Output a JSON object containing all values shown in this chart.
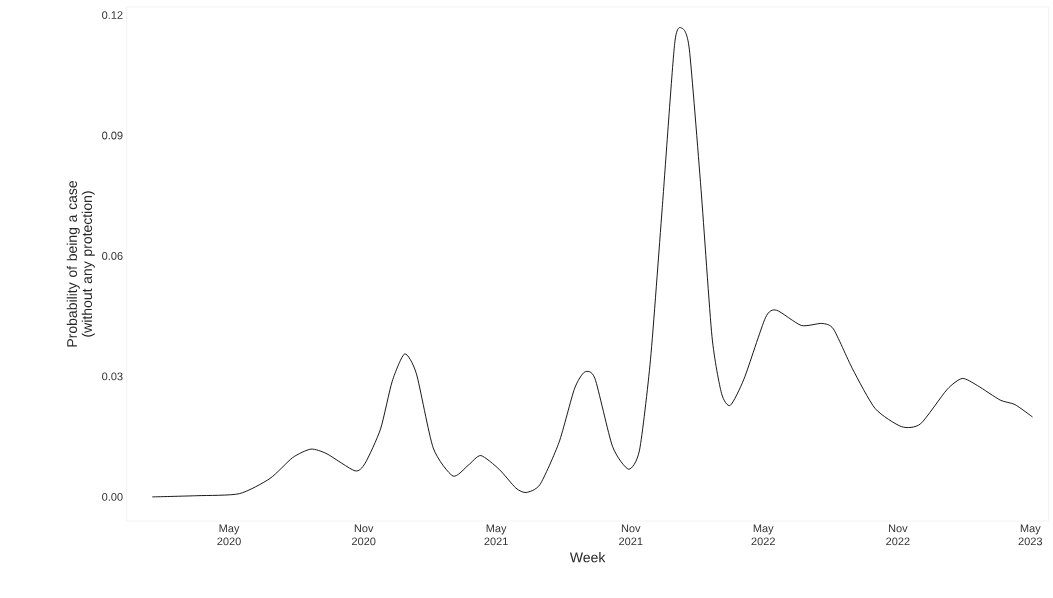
{
  "chart_data": {
    "type": "line",
    "xlabel": "Week",
    "ylabel": "Probability of being a case (without any protection)",
    "x": [
      "2020-01-17",
      "2020-03-18",
      "2020-05-15",
      "2020-06-26",
      "2020-07-27",
      "2020-08-21",
      "2020-09-12",
      "2020-10-20",
      "2020-11-03",
      "2020-11-24",
      "2020-12-10",
      "2020-12-27",
      "2021-01-12",
      "2021-02-04",
      "2021-03-03",
      "2021-03-24",
      "2021-04-10",
      "2021-05-05",
      "2021-05-28",
      "2021-06-11",
      "2021-06-30",
      "2021-07-26",
      "2021-08-16",
      "2021-08-30",
      "2021-09-13",
      "2021-10-07",
      "2021-10-29",
      "2021-11-13",
      "2021-11-28",
      "2021-12-14",
      "2021-12-31",
      "2022-01-10",
      "2022-01-20",
      "2022-02-05",
      "2022-02-20",
      "2022-03-05",
      "2022-03-17",
      "2022-04-05",
      "2022-05-04",
      "2022-05-19",
      "2022-06-22",
      "2022-07-20",
      "2022-08-05",
      "2022-08-31",
      "2022-10-01",
      "2022-11-06",
      "2022-12-02",
      "2023-01-07",
      "2023-01-28",
      "2023-02-18",
      "2023-03-21",
      "2023-04-10",
      "2023-05-04"
    ],
    "series": [
      {
        "color": "#000000",
        "values": [
          0.0,
          0.0003,
          0.0008,
          0.0046,
          0.0098,
          0.0119,
          0.0107,
          0.0065,
          0.0084,
          0.0169,
          0.0288,
          0.0356,
          0.0307,
          0.0122,
          0.0052,
          0.0079,
          0.0103,
          0.0069,
          0.0022,
          0.0011,
          0.0031,
          0.0136,
          0.0269,
          0.0311,
          0.0295,
          0.0126,
          0.0069,
          0.0117,
          0.0343,
          0.072,
          0.1129,
          0.1167,
          0.1115,
          0.0766,
          0.0399,
          0.0258,
          0.0228,
          0.0295,
          0.0446,
          0.0465,
          0.0427,
          0.0432,
          0.0418,
          0.0319,
          0.022,
          0.0175,
          0.0182,
          0.0267,
          0.0295,
          0.0277,
          0.0241,
          0.023,
          0.0199
        ]
      }
    ],
    "xticks": [
      {
        "value": "2020-05-01",
        "label": "May 2020"
      },
      {
        "value": "2020-11-01",
        "label": "Nov 2020"
      },
      {
        "value": "2021-05-01",
        "label": "May 2021"
      },
      {
        "value": "2021-11-01",
        "label": "Nov 2021"
      },
      {
        "value": "2022-05-01",
        "label": "May 2022"
      },
      {
        "value": "2022-11-01",
        "label": "Nov 2022"
      },
      {
        "value": "2023-05-01",
        "label": "May 2023"
      }
    ],
    "xlim": [
      "2019-12-13",
      "2023-05-26"
    ],
    "ylim": [
      -0.006,
      0.122
    ],
    "yticks": [
      {
        "value": 0,
        "label": "0.00"
      },
      0.03,
      0.06,
      0.09,
      0.12
    ]
  }
}
